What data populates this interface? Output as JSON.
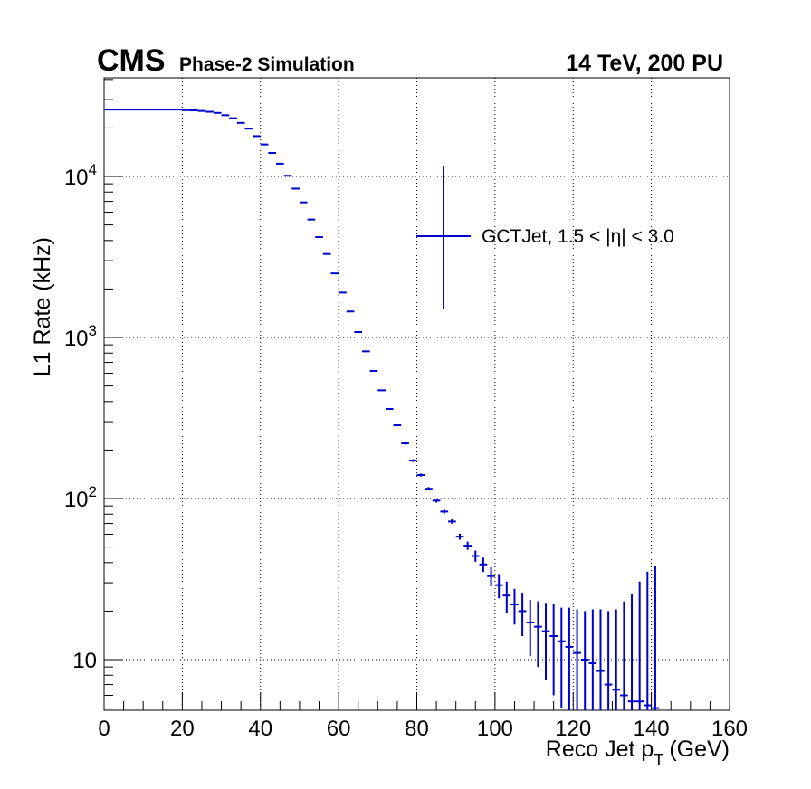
{
  "chart_data": {
    "type": "scatter",
    "experiment": "CMS",
    "subtitle": "Phase-2 Simulation",
    "energy_label": "14 TeV, 200 PU",
    "xlabel": "Reco Jet p",
    "xlabel_sub": "T",
    "xlabel_unit": "(GeV)",
    "ylabel": "L1 Rate (kHz)",
    "xlim": [
      0,
      160
    ],
    "ylim": [
      5,
      40000
    ],
    "y_scale": "log",
    "grid": true,
    "legend_position": "top-right",
    "x_ticks": [
      "0",
      "20",
      "40",
      "60",
      "80",
      "100",
      "120",
      "140",
      "160"
    ],
    "y_ticks": [
      {
        "value": 10,
        "base": "10",
        "exp": ""
      },
      {
        "value": 100,
        "base": "10",
        "exp": "2"
      },
      {
        "value": 1000,
        "base": "10",
        "exp": "3"
      },
      {
        "value": 10000,
        "base": "10",
        "exp": "4"
      }
    ],
    "series": [
      {
        "name": "GCTJet, 1.5 < |η| < 3.0",
        "color": "#0000cc",
        "bin_width": 2,
        "x": [
          1,
          3,
          5,
          7,
          9,
          11,
          13,
          15,
          17,
          19,
          21,
          23,
          25,
          27,
          29,
          31,
          33,
          35,
          37,
          39,
          41,
          43,
          45,
          47,
          49,
          51,
          53,
          55,
          57,
          59,
          61,
          63,
          65,
          67,
          69,
          71,
          73,
          75,
          77,
          79,
          81,
          83,
          85,
          87,
          89,
          91,
          93,
          95,
          97,
          99,
          101,
          103,
          105,
          107,
          109,
          111,
          113,
          115,
          117,
          119,
          121,
          123,
          125,
          127,
          129,
          131,
          133,
          135,
          137,
          139,
          141
        ],
        "y": [
          26000,
          26000,
          26000,
          26000,
          26000,
          26000,
          26000,
          26000,
          26000,
          26000,
          25800,
          25700,
          25500,
          25200,
          24800,
          24000,
          23000,
          21500,
          19800,
          17800,
          15800,
          14000,
          12000,
          10100,
          8400,
          6900,
          5400,
          4200,
          3300,
          2500,
          1900,
          1450,
          1080,
          820,
          620,
          470,
          360,
          285,
          220,
          172,
          140,
          115,
          97,
          83,
          72,
          58,
          51,
          44,
          39,
          33,
          29,
          25,
          22,
          20,
          17,
          16,
          15,
          14,
          13,
          12,
          11,
          10,
          9.5,
          8.5,
          7,
          6.5,
          6,
          5.5,
          5.5,
          5.2,
          5.0
        ],
        "yerr": [
          20,
          20,
          20,
          20,
          20,
          20,
          20,
          20,
          20,
          20,
          20,
          20,
          20,
          20,
          20,
          20,
          20,
          20,
          20,
          18,
          17,
          16,
          15,
          14,
          13,
          12,
          11,
          10,
          9,
          8,
          7,
          6.5,
          6,
          5.5,
          5,
          4.5,
          4,
          3.8,
          3.5,
          3.2,
          3,
          2.8,
          2.6,
          2.4,
          2.3,
          2.5,
          3,
          3.5,
          4,
          4.5,
          5,
          5.5,
          5.5,
          6,
          6.5,
          7,
          7.5,
          8,
          8,
          9,
          9.5,
          10,
          11,
          12,
          13,
          14,
          17,
          20,
          25,
          30,
          33
        ]
      }
    ]
  }
}
